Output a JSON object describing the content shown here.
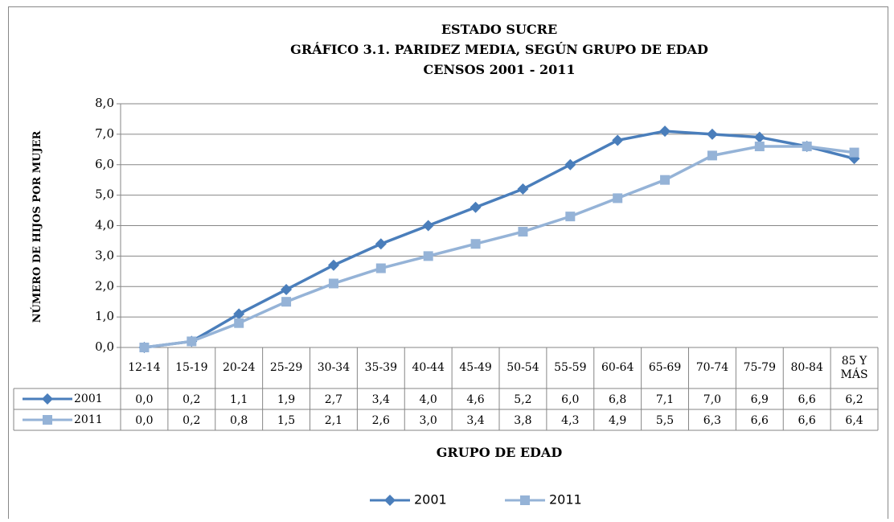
{
  "chart_data": {
    "type": "line",
    "title_lines": [
      "ESTADO SUCRE",
      "GRÁFICO 3.1. PARIDEZ MEDIA, SEGÚN GRUPO DE EDAD",
      "CENSOS 2001 - 2011"
    ],
    "x_label": "GRUPO DE EDAD",
    "y_label": "NÚMERO DE HIJOS POR MUJER",
    "categories": [
      "12-14",
      "15-19",
      "20-24",
      "25-29",
      "30-34",
      "35-39",
      "40-44",
      "45-49",
      "50-54",
      "55-59",
      "60-64",
      "65-69",
      "70-74",
      "75-79",
      "80-84",
      "85 Y MÁS"
    ],
    "series": [
      {
        "name": "2001",
        "color": "#4a7ebb",
        "marker": "diamond",
        "values": [
          0.0,
          0.2,
          1.1,
          1.9,
          2.7,
          3.4,
          4.0,
          4.6,
          5.2,
          6.0,
          6.8,
          7.1,
          7.0,
          6.9,
          6.6,
          6.2
        ],
        "value_labels": [
          "0,0",
          "0,2",
          "1,1",
          "1,9",
          "2,7",
          "3,4",
          "4,0",
          "4,6",
          "5,2",
          "6,0",
          "6,8",
          "7,1",
          "7,0",
          "6,9",
          "6,6",
          "6,2"
        ]
      },
      {
        "name": "2011",
        "color": "#95b3d7",
        "marker": "square",
        "values": [
          0.0,
          0.2,
          0.8,
          1.5,
          2.1,
          2.6,
          3.0,
          3.4,
          3.8,
          4.3,
          4.9,
          5.5,
          6.3,
          6.6,
          6.6,
          6.4
        ],
        "value_labels": [
          "0,0",
          "0,2",
          "0,8",
          "1,5",
          "2,1",
          "2,6",
          "3,0",
          "3,4",
          "3,8",
          "4,3",
          "4,9",
          "5,5",
          "6,3",
          "6,6",
          "6,6",
          "6,4"
        ]
      }
    ],
    "ylim": [
      0,
      8
    ],
    "yticks": [
      {
        "value": 0,
        "label": "0,0"
      },
      {
        "value": 1,
        "label": "1,0"
      },
      {
        "value": 2,
        "label": "2,0"
      },
      {
        "value": 3,
        "label": "3,0"
      },
      {
        "value": 4,
        "label": "4,0"
      },
      {
        "value": 5,
        "label": "5,0"
      },
      {
        "value": 6,
        "label": "6,0"
      },
      {
        "value": 7,
        "label": "7,0"
      },
      {
        "value": 8,
        "label": "8,0"
      }
    ],
    "grid": true,
    "legend": "bottom"
  }
}
